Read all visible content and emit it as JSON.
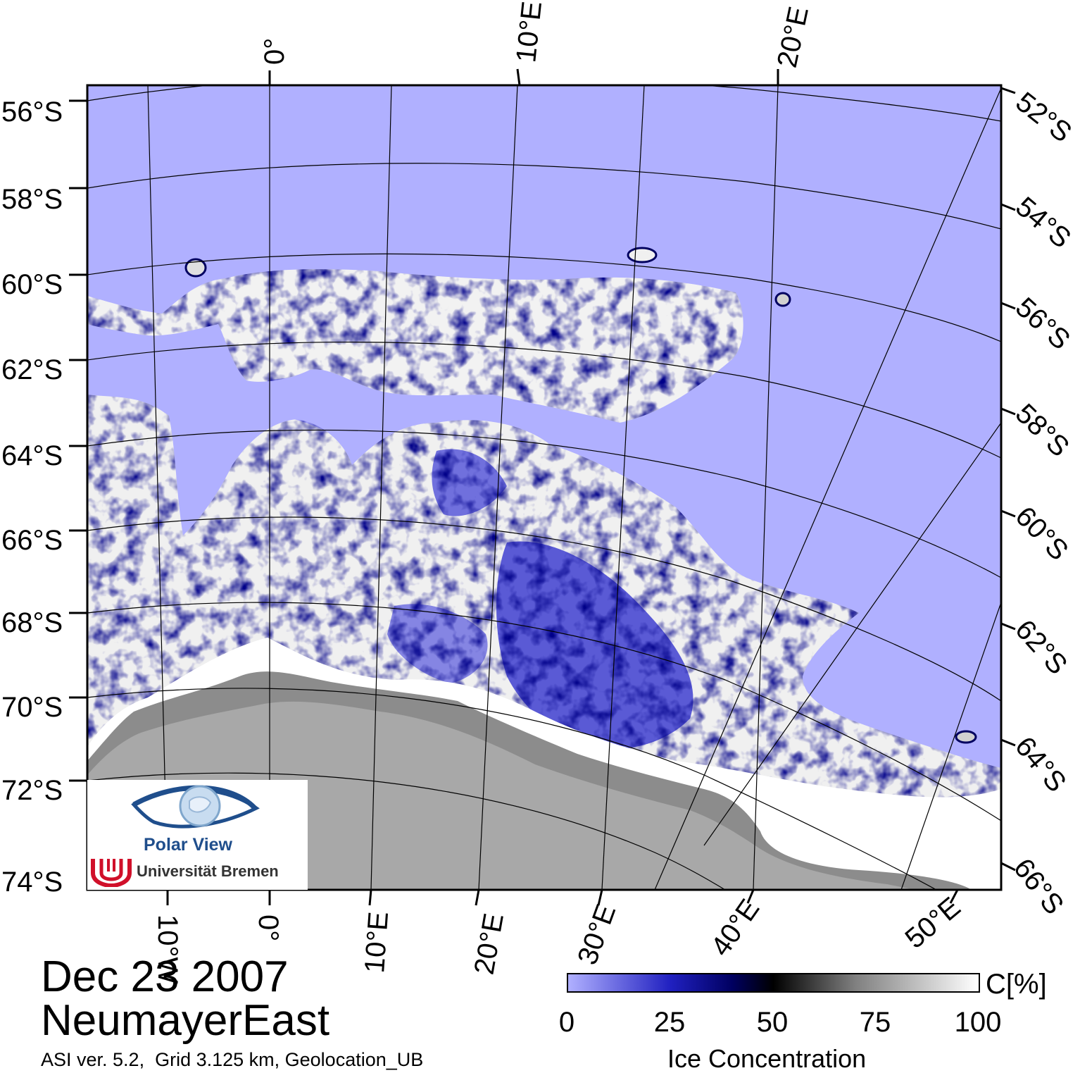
{
  "map": {
    "lat_labels_left": [
      "56°S",
      "58°S",
      "60°S",
      "62°S",
      "64°S",
      "66°S",
      "68°S",
      "70°S",
      "72°S",
      "74°S"
    ],
    "lat_labels_right": [
      "52°S",
      "54°S",
      "56°S",
      "58°S",
      "60°S",
      "62°S",
      "64°S",
      "66°S"
    ],
    "lon_labels_top": [
      "0°",
      "10°E",
      "20°E"
    ],
    "lon_labels_bottom": [
      "10°W",
      "0°",
      "10°E",
      "20°E",
      "30°E",
      "40°E",
      "50°E"
    ],
    "colors": {
      "open_water": "#b0b0ff",
      "land_ice": "#a8a8a8",
      "land_dark": "#8c8c8c",
      "fast_ice": "#ffffff"
    }
  },
  "date": "Dec 23 2007",
  "region": "NeumayerEast",
  "credit": "ASI ver. 5.2,  Grid 3.125 km, Geolocation_UB",
  "colorbar": {
    "unit": "C[%]",
    "ticks": [
      "0",
      "25",
      "50",
      "75",
      "100"
    ],
    "label": "Ice Concentration"
  },
  "logo": {
    "name": "Polar View",
    "university": "Universität Bremen"
  }
}
